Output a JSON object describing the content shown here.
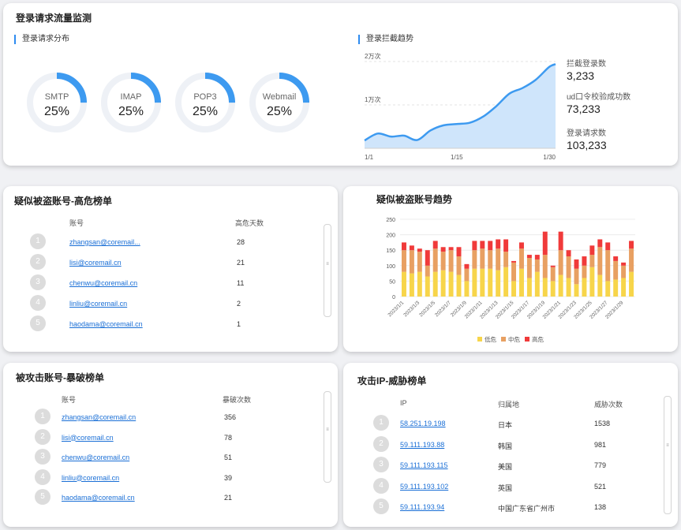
{
  "monitor": {
    "title": "登录请求流量监测",
    "distribution_title": "登录请求分布",
    "protocols": [
      {
        "name": "SMTP",
        "value": "25%",
        "fraction": 0.25
      },
      {
        "name": "IMAP",
        "value": "25%",
        "fraction": 0.25
      },
      {
        "name": "POP3",
        "value": "25%",
        "fraction": 0.25
      },
      {
        "name": "Webmail",
        "value": "25%",
        "fraction": 0.25
      }
    ],
    "trend_title": "登录拦截趋势",
    "trend_chart": {
      "type": "area",
      "y_ticks": [
        "2万次",
        "1万次"
      ],
      "x_ticks": [
        "1/1",
        "1/15",
        "1/30"
      ],
      "x": [
        1,
        3,
        5,
        7,
        9,
        11,
        13,
        15,
        17,
        19,
        21,
        23,
        25,
        27,
        29,
        30
      ],
      "values": [
        1800,
        3400,
        2700,
        2900,
        1900,
        4100,
        5300,
        5600,
        5900,
        7300,
        9700,
        12600,
        13900,
        15800,
        18700,
        19400
      ],
      "ylim": [
        0,
        20000
      ],
      "color": "#3d9af0",
      "fill": "#cfe5fb"
    },
    "stats": [
      {
        "label": "拦截登录数",
        "value": "3,233"
      },
      {
        "label": "ud口令校验成功数",
        "value": "73,233"
      },
      {
        "label": "登录请求数",
        "value": "103,233"
      }
    ]
  },
  "high_risk": {
    "title": "疑似被盗账号-高危榜单",
    "col_account": "账号",
    "col_days": "高危天数",
    "rows": [
      {
        "rank": "1",
        "account": "zhangsan@coremail...",
        "value": "28"
      },
      {
        "rank": "2",
        "account": "lisi@coremail.cn",
        "value": "21"
      },
      {
        "rank": "3",
        "account": "chenwu@coremail.cn",
        "value": "11"
      },
      {
        "rank": "4",
        "account": "linliu@coremail.cn",
        "value": "2"
      },
      {
        "rank": "5",
        "account": "haodama@coremail.cn",
        "value": "1"
      }
    ]
  },
  "stolen_trend": {
    "title": "疑似被盗账号趋势",
    "chart_data": {
      "type": "bar",
      "stacked": true,
      "categories": [
        "2023/1/1",
        "2023/1/2",
        "2023/1/3",
        "2023/1/4",
        "2023/1/5",
        "2023/1/6",
        "2023/1/7",
        "2023/1/8",
        "2023/1/9",
        "2023/1/10",
        "2023/1/11",
        "2023/1/12",
        "2023/1/13",
        "2023/1/14",
        "2023/1/15",
        "2023/1/16",
        "2023/1/17",
        "2023/1/18",
        "2023/1/19",
        "2023/1/20",
        "2023/1/21",
        "2023/1/22",
        "2023/1/23",
        "2023/1/24",
        "2023/1/25",
        "2023/1/26",
        "2023/1/27",
        "2023/1/28",
        "2023/1/29",
        "2023/1/30"
      ],
      "tick_labels": [
        "2023/1/1",
        "2023/1/3",
        "2023/1/5",
        "2023/1/7",
        "2023/1/9",
        "2023/1/11",
        "2023/1/13",
        "2023/1/15",
        "2023/1/17",
        "2023/1/19",
        "2023/1/21",
        "2023/1/23",
        "2023/1/25",
        "2023/1/27",
        "2023/1/29"
      ],
      "series": [
        {
          "name": "低危",
          "color": "#f7d54a",
          "values": [
            80,
            75,
            80,
            65,
            80,
            85,
            80,
            70,
            50,
            90,
            90,
            90,
            85,
            95,
            50,
            90,
            60,
            80,
            60,
            50,
            70,
            60,
            40,
            60,
            95,
            70,
            50,
            55,
            60,
            80
          ]
        },
        {
          "name": "中危",
          "color": "#e8a062",
          "values": [
            70,
            75,
            65,
            35,
            75,
            60,
            70,
            60,
            40,
            60,
            65,
            60,
            70,
            50,
            60,
            65,
            65,
            40,
            75,
            45,
            80,
            70,
            50,
            40,
            40,
            90,
            100,
            60,
            40,
            75
          ]
        },
        {
          "name": "高危",
          "color": "#f03a3a",
          "values": [
            25,
            15,
            10,
            50,
            25,
            15,
            10,
            30,
            15,
            30,
            25,
            30,
            30,
            40,
            5,
            20,
            10,
            15,
            75,
            5,
            60,
            20,
            30,
            30,
            30,
            25,
            25,
            15,
            10,
            25
          ]
        }
      ],
      "ylim": [
        0,
        250
      ],
      "y_ticks": [
        0,
        50,
        100,
        150,
        200,
        250
      ],
      "legend": "bottom"
    }
  },
  "brute": {
    "title": "被攻击账号-暴破榜单",
    "col_account": "账号",
    "col_count": "暴破次数",
    "rows": [
      {
        "rank": "1",
        "account": "zhangsan@coremail.cn",
        "value": "356"
      },
      {
        "rank": "2",
        "account": "lisi@coremail.cn",
        "value": "78"
      },
      {
        "rank": "3",
        "account": "chenwu@coremail.cn",
        "value": "51"
      },
      {
        "rank": "4",
        "account": "linliu@coremail.cn",
        "value": "39"
      },
      {
        "rank": "5",
        "account": "haodama@coremail.cn",
        "value": "21"
      }
    ]
  },
  "threat_ip": {
    "title": "攻击IP-威胁榜单",
    "col_ip": "IP",
    "col_location": "归属地",
    "col_count": "威胁次数",
    "rows": [
      {
        "rank": "1",
        "ip": "58.251.19.198",
        "location": "日本",
        "value": "1538"
      },
      {
        "rank": "2",
        "ip": "59.111.193.88",
        "location": "韩国",
        "value": "981"
      },
      {
        "rank": "3",
        "ip": "59.111.193.115",
        "location": "美国",
        "value": "779"
      },
      {
        "rank": "4",
        "ip": "59.111.193.102",
        "location": "英国",
        "value": "521"
      },
      {
        "rank": "5",
        "ip": "59.111.193.94",
        "location": "中国广东省广州市",
        "value": "138"
      }
    ]
  },
  "scroll_grip": "≡"
}
